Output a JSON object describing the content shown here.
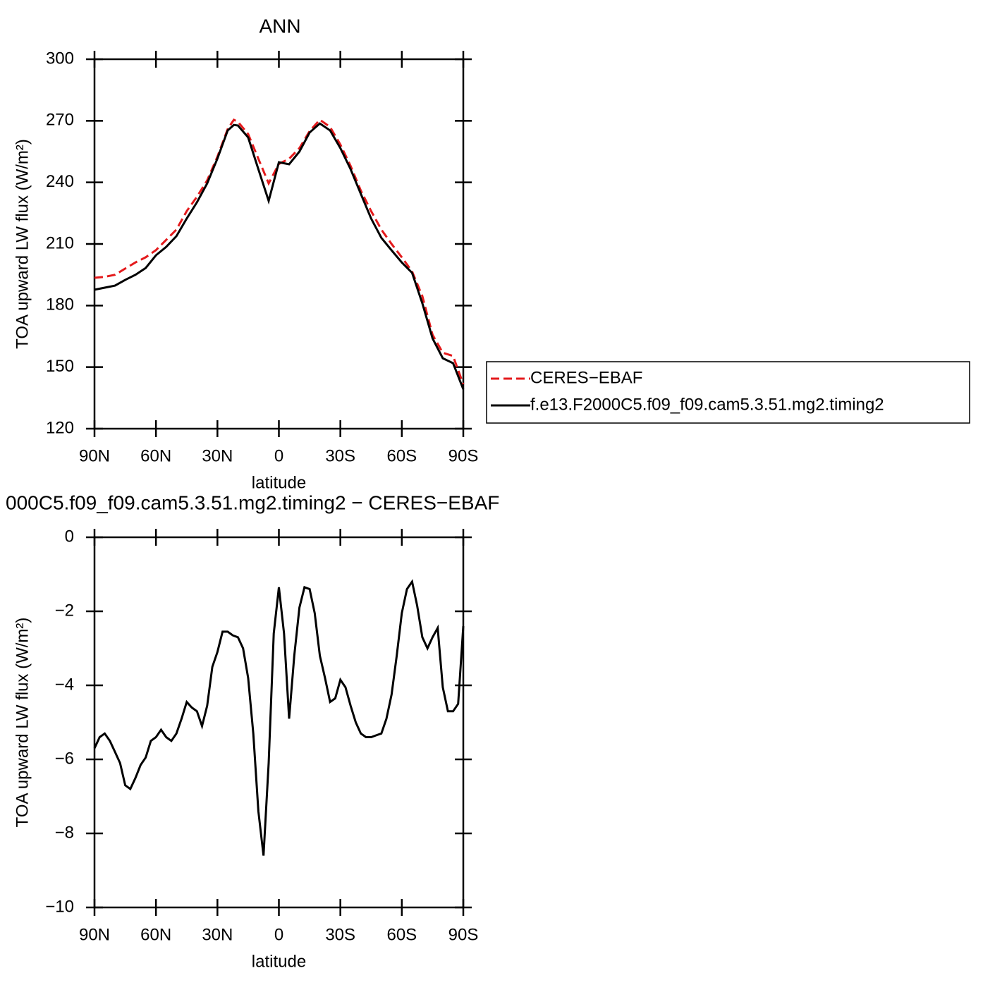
{
  "chart_data": [
    {
      "type": "line",
      "title": "ANN",
      "xlabel": "latitude",
      "ylabel": "TOA upward LW flux (W/m²)",
      "x": [
        90,
        85,
        80,
        75,
        70,
        65,
        60,
        55,
        50,
        45,
        40,
        35,
        30,
        25,
        22,
        20,
        15,
        10,
        5,
        0,
        -5,
        -10,
        -15,
        -20,
        -25,
        -30,
        -35,
        -40,
        -45,
        -50,
        -55,
        -60,
        -65,
        -70,
        -75,
        -80,
        -85,
        -90
      ],
      "series": [
        {
          "name": "CERES−EBAF",
          "color": "#e41a1c",
          "dashed": true,
          "values": [
            193.5,
            194,
            195,
            198,
            201,
            203.5,
            207,
            212,
            217,
            226,
            233,
            241,
            252.5,
            266,
            270.5,
            269.5,
            263.6,
            251.5,
            239.5,
            249,
            251.5,
            256.7,
            265,
            270.5,
            267,
            258.4,
            248,
            236,
            226,
            217,
            210,
            203.5,
            196.6,
            184.6,
            165.8,
            157,
            155.4,
            141.6
          ]
        },
        {
          "name": "f.e13.F2000C5.f09_f09.cam5.3.51.mg2.timing2",
          "color": "#000000",
          "dashed": false,
          "values": [
            187.7,
            188.7,
            189.7,
            192.5,
            195,
            198.3,
            204.5,
            208.6,
            213.8,
            222.4,
            230.3,
            239.5,
            251.6,
            265.3,
            268,
            267.7,
            261.9,
            246.4,
            231,
            249.8,
            248.8,
            255,
            264.3,
            268.7,
            265.3,
            256.7,
            246.4,
            234.4,
            222.4,
            213,
            206.9,
            201,
            195.9,
            181.1,
            164,
            154.3,
            151.9,
            139.2
          ]
        }
      ],
      "xlim": [
        90,
        -90
      ],
      "ylim": [
        120,
        300
      ],
      "xticks": [
        {
          "value": 90,
          "label": "90N"
        },
        {
          "value": 60,
          "label": "60N"
        },
        {
          "value": 30,
          "label": "30N"
        },
        0,
        {
          "value": -30,
          "label": "30S"
        },
        {
          "value": -60,
          "label": "60S"
        },
        {
          "value": -90,
          "label": "90S"
        }
      ],
      "yticks": [
        120,
        150,
        180,
        210,
        240,
        270,
        300
      ],
      "legend": "right"
    },
    {
      "type": "line",
      "title": "000C5.f09_f09.cam5.3.51.mg2.timing2 − CERES−EBAF",
      "xlabel": "latitude",
      "ylabel": "TOA upward LW flux (W/m²)",
      "x": [
        90,
        87.5,
        85,
        82.5,
        80,
        77.5,
        75,
        72.5,
        70,
        67.5,
        65,
        62.5,
        60,
        57.5,
        55,
        52.5,
        50,
        47.5,
        45,
        42.5,
        40,
        37.5,
        35,
        32.5,
        30,
        27.5,
        25,
        22.5,
        20,
        17.5,
        15,
        12.5,
        10,
        7.5,
        5,
        2.5,
        0,
        -2.5,
        -5,
        -7.5,
        -10,
        -12.5,
        -15,
        -17.5,
        -20,
        -22.5,
        -25,
        -27.5,
        -30,
        -32.5,
        -35,
        -37.5,
        -40,
        -42.5,
        -45,
        -47.5,
        -50,
        -52.5,
        -55,
        -57.5,
        -60,
        -62.5,
        -65,
        -67.5,
        -70,
        -72.5,
        -75,
        -77.5,
        -80,
        -82.5,
        -85,
        -87.5,
        -90
      ],
      "series": [
        {
          "color": "#000000",
          "dashed": false,
          "values": [
            -5.7,
            -5.4,
            -5.3,
            -5.5,
            -5.8,
            -6.1,
            -6.7,
            -6.8,
            -6.5,
            -6.15,
            -5.95,
            -5.5,
            -5.4,
            -5.2,
            -5.4,
            -5.5,
            -5.3,
            -4.9,
            -4.45,
            -4.6,
            -4.7,
            -5.1,
            -4.55,
            -3.5,
            -3.1,
            -2.55,
            -2.55,
            -2.65,
            -2.7,
            -3.0,
            -3.8,
            -5.3,
            -7.4,
            -8.6,
            -6.1,
            -2.6,
            -1.35,
            -2.6,
            -4.9,
            -3.2,
            -1.9,
            -1.35,
            -1.4,
            -2.05,
            -3.2,
            -3.8,
            -4.45,
            -4.35,
            -3.85,
            -4.05,
            -4.55,
            -5.0,
            -5.3,
            -5.4,
            -5.4,
            -5.35,
            -5.3,
            -4.9,
            -4.25,
            -3.2,
            -2.05,
            -1.4,
            -1.2,
            -1.85,
            -2.7,
            -3.0,
            -2.7,
            -2.45,
            -4.05,
            -4.7,
            -4.7,
            -4.5,
            -2.4
          ]
        }
      ],
      "xlim": [
        90,
        -90
      ],
      "ylim": [
        -10,
        0
      ],
      "xticks": [
        {
          "value": 90,
          "label": "90N"
        },
        {
          "value": 60,
          "label": "60N"
        },
        {
          "value": 30,
          "label": "30N"
        },
        0,
        {
          "value": -30,
          "label": "30S"
        },
        {
          "value": -60,
          "label": "60S"
        },
        {
          "value": -90,
          "label": "90S"
        }
      ],
      "yticks": [
        {
          "value": -10,
          "label": "−10"
        },
        {
          "value": -8,
          "label": "−8"
        },
        {
          "value": -6,
          "label": "−6"
        },
        {
          "value": -4,
          "label": "−4"
        },
        {
          "value": -2,
          "label": "−2"
        },
        0
      ]
    }
  ]
}
